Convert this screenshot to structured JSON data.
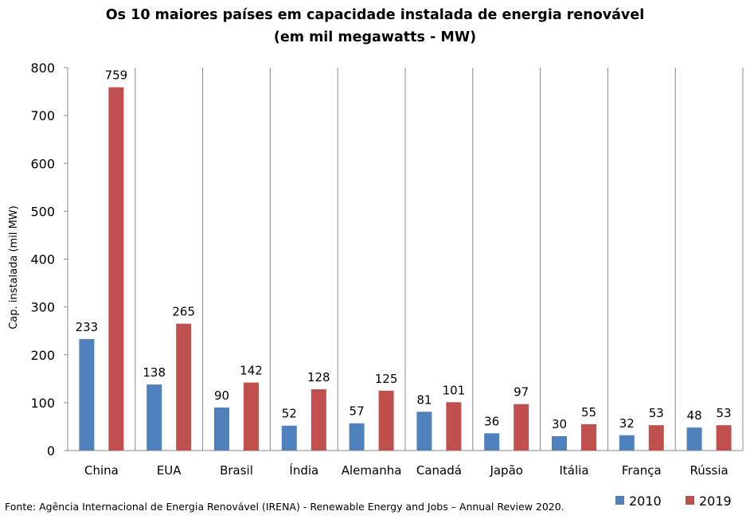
{
  "chart_data": {
    "type": "bar",
    "title": "Os 10 maiores países em capacidade instalada de energia renovável",
    "subtitle": "(em mil megawatts - MW)",
    "ylabel": "Cap. instalada (mil MW)",
    "xlabel": "",
    "ylim": [
      0,
      800
    ],
    "yticks": [
      0,
      100,
      200,
      300,
      400,
      500,
      600,
      700,
      800
    ],
    "categories": [
      "China",
      "EUA",
      "Brasil",
      "Índia",
      "Alemanha",
      "Canadá",
      "Japão",
      "Itália",
      "França",
      "Rússia"
    ],
    "series": [
      {
        "name": "2010",
        "color": "#4f81bd",
        "values": [
          233,
          138,
          90,
          52,
          57,
          81,
          36,
          30,
          32,
          48
        ]
      },
      {
        "name": "2019",
        "color": "#c0504d",
        "values": [
          759,
          265,
          142,
          128,
          125,
          101,
          97,
          55,
          53,
          53
        ]
      }
    ],
    "legend_position": "bottom-right",
    "grid": false,
    "category_separators": true
  },
  "source": "Fonte: Agência Internacional de Energia Renovável (IRENA) - Renewable Energy and Jobs – Annual Review 2020."
}
